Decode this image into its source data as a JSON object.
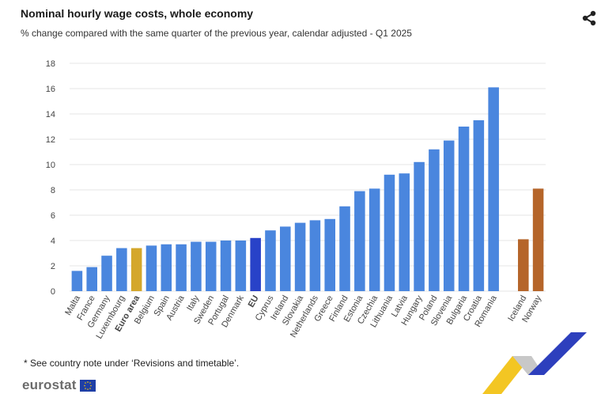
{
  "header": {
    "title": "Nominal hourly wage costs, whole economy",
    "subtitle": "% change compared with the same quarter of the previous year, calendar adjusted - Q1 2025"
  },
  "share_icon": "share-icon",
  "footer": {
    "note": "* See country note under ‘Revisions and timetable’.",
    "logo_text": "eurostat",
    "logo_flag_icon": "eu-flag-icon"
  },
  "colors": {
    "country": "#4a86de",
    "euro_area": "#d4a72c",
    "eu": "#2842c8",
    "non_eu": "#b5652a",
    "grid": "#e6e6e6"
  },
  "chart_data": {
    "type": "bar",
    "title": "Nominal hourly wage costs, whole economy",
    "subtitle": "% change compared with the same quarter of the previous year, calendar adjusted - Q1 2025",
    "xlabel": "",
    "ylabel": "",
    "ylim": [
      0,
      18
    ],
    "yticks": [
      0,
      2,
      4,
      6,
      8,
      10,
      12,
      14,
      16,
      18
    ],
    "grid": true,
    "categories": [
      "Malta",
      "France",
      "Germany",
      "Luxembourg",
      "Euro area",
      "Belgium",
      "Spain",
      "Austria",
      "Italy",
      "Sweden",
      "Portugal",
      "Denmark",
      "EU",
      "Cyprus",
      "Ireland",
      "Slovakia",
      "Netherlands",
      "Greece",
      "Finland",
      "Estonia",
      "Czechia",
      "Lithuania",
      "Latvia",
      "Hungary",
      "Poland",
      "Slovenia",
      "Bulgaria",
      "Croatia",
      "Romania",
      "",
      "Iceland",
      "Norway"
    ],
    "values": [
      1.6,
      1.9,
      2.8,
      3.4,
      3.4,
      3.6,
      3.7,
      3.7,
      3.9,
      3.9,
      4.0,
      4.0,
      4.2,
      4.8,
      5.1,
      5.4,
      5.6,
      5.7,
      6.7,
      7.9,
      8.1,
      9.2,
      9.3,
      10.2,
      11.2,
      11.9,
      13.0,
      13.5,
      16.1,
      null,
      4.1,
      8.1
    ],
    "groups": [
      "country",
      "country",
      "country",
      "country",
      "euro_area",
      "country",
      "country",
      "country",
      "country",
      "country",
      "country",
      "country",
      "eu",
      "country",
      "country",
      "country",
      "country",
      "country",
      "country",
      "country",
      "country",
      "country",
      "country",
      "country",
      "country",
      "country",
      "country",
      "country",
      "country",
      "gap",
      "non_eu",
      "non_eu"
    ],
    "bold_labels": [
      "Euro area",
      "EU"
    ]
  }
}
